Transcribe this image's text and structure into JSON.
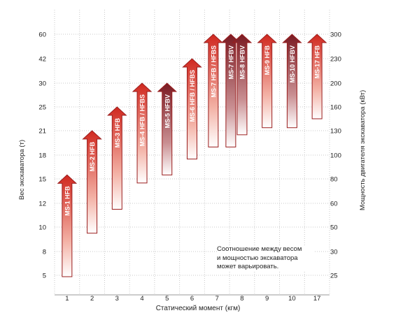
{
  "chart_data": {
    "type": "bar",
    "subtype": "floating-arrow-range",
    "ylabel_left": "Вес экскаватора (т)",
    "ylabel_right": "Мощность двигателя экскаватора (кВт)",
    "xlabel": "Статический момент (кгм)",
    "left_ticks": [
      "60",
      "42",
      "30",
      "25",
      "21",
      "18",
      "15",
      "12",
      "10",
      "8",
      "5"
    ],
    "right_ticks": [
      "300",
      "230",
      "200",
      "160",
      "130",
      "100",
      "80",
      "60",
      "50",
      "30",
      "25"
    ],
    "categories": [
      "1",
      "2",
      "3",
      "4",
      "5",
      "6",
      "7",
      "8",
      "9",
      "10",
      "17"
    ],
    "grid": true,
    "note": [
      "Соотношение между весом",
      "и мощностью экскаватора",
      "может варьировать."
    ],
    "colors": {
      "arrow_red": "#d0281f",
      "arrow_dark": "#7a1a22",
      "arrow_outline": "#9a1d1d",
      "grid": "#c8c8c8"
    },
    "arrows": [
      {
        "label": "MS-1 HFB",
        "x": "1",
        "weight_range": [
          4.5,
          15.5
        ],
        "style": "red"
      },
      {
        "label": "MS-2 HFB",
        "x": "2",
        "weight_range": [
          9.5,
          21
        ],
        "style": "red"
      },
      {
        "label": "MS-3 HFB",
        "x": "3",
        "weight_range": [
          11.5,
          25
        ],
        "style": "red"
      },
      {
        "label": "MS-4 HFB / HFBS",
        "x": "4",
        "weight_range": [
          14.5,
          30
        ],
        "style": "red"
      },
      {
        "label": "MS-5 HFBV",
        "x": "5",
        "weight_range": [
          15.5,
          30
        ],
        "style": "dark"
      },
      {
        "label": "MS-6 HFB / HFBS",
        "x": "6",
        "weight_range": [
          17.5,
          42
        ],
        "style": "red"
      },
      {
        "label": "MS-7 HFB / HFBS",
        "x": "7",
        "weight_range": [
          19,
          60
        ],
        "style": "red"
      },
      {
        "label": "MS-7 HFBV",
        "x": "7",
        "weight_range": [
          19,
          60
        ],
        "style": "dark"
      },
      {
        "label": "MS-8 HFBV",
        "x": "8",
        "weight_range": [
          20.5,
          60
        ],
        "style": "dark"
      },
      {
        "label": "MS-9 HFB",
        "x": "9",
        "weight_range": [
          21.5,
          60
        ],
        "style": "red"
      },
      {
        "label": "MS-10 HFBV",
        "x": "10",
        "weight_range": [
          21.5,
          60
        ],
        "style": "dark"
      },
      {
        "label": "MS-17 HFB",
        "x": "17",
        "weight_range": [
          23,
          60
        ],
        "style": "red"
      }
    ]
  }
}
